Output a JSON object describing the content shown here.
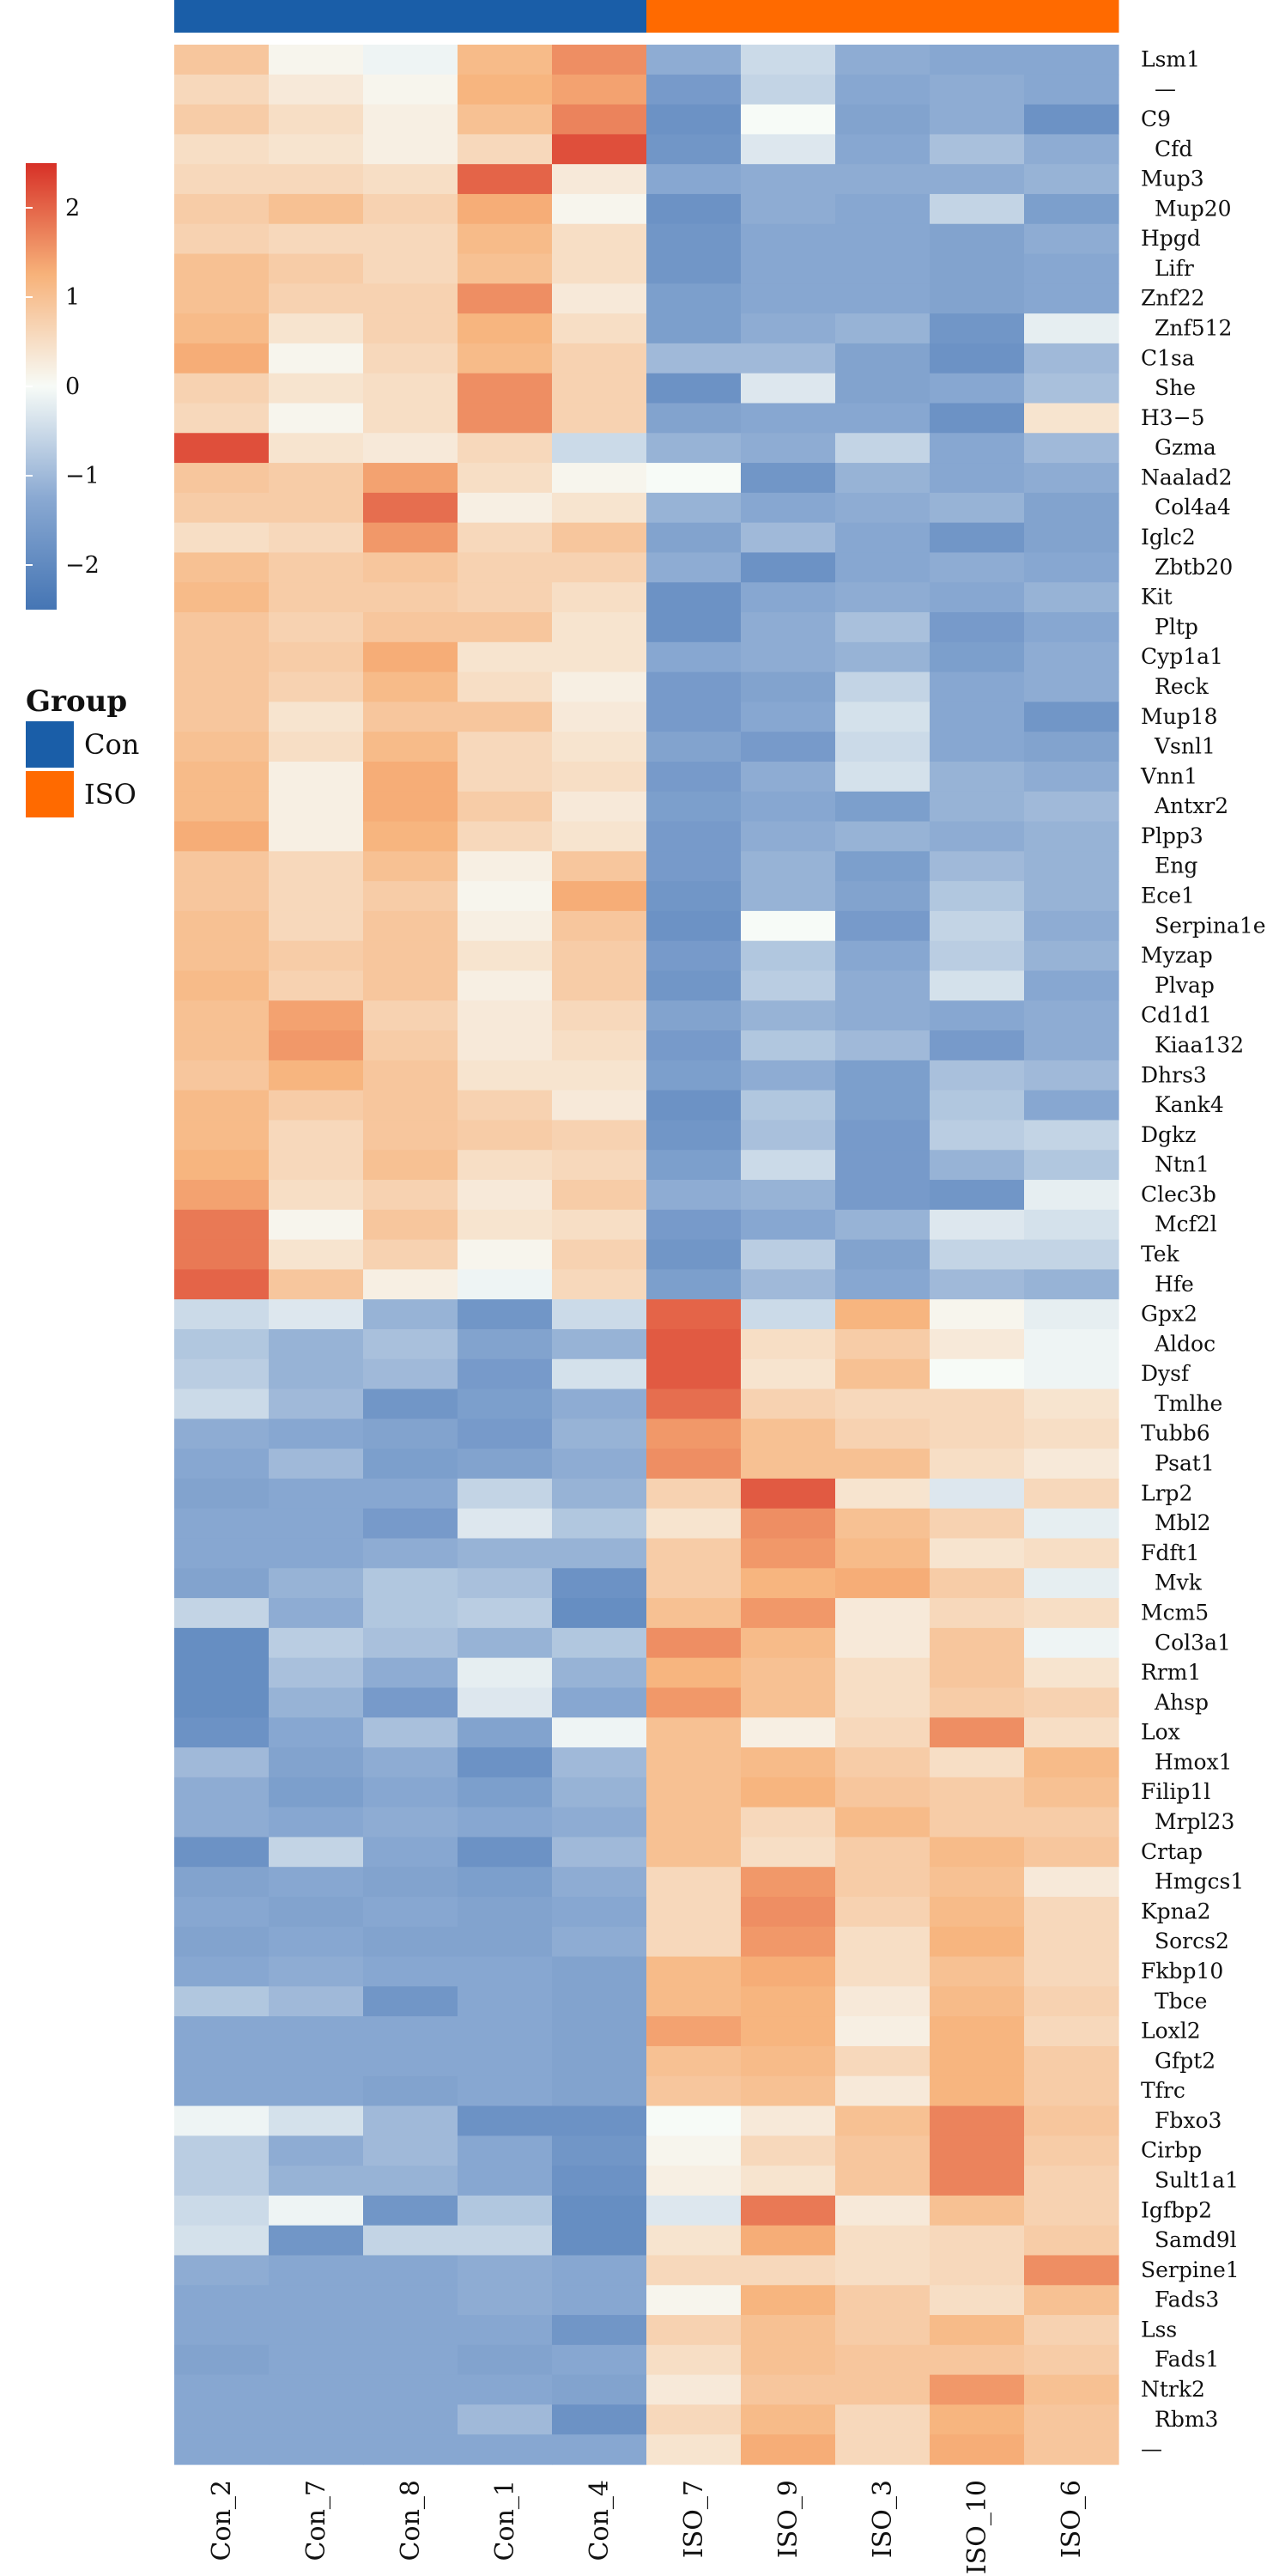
{
  "chart_data": {
    "type": "heatmap",
    "rows": [
      "Lsm1",
      "—",
      "C9",
      "Cfd",
      "Mup3",
      "Mup20",
      "Hpgd",
      "Lifr",
      "Znf22",
      "Znf512",
      "C1sa",
      "She",
      "H3−5",
      "Gzma",
      "Naalad2",
      "Col4a4",
      "Iglc2",
      "Zbtb20",
      "Kit",
      "Pltp",
      "Cyp1a1",
      "Reck",
      "Mup18",
      "Vsnl1",
      "Vnn1",
      "Antxr2",
      "Plpp3",
      "Eng",
      "Ece1",
      "Serpina1e",
      "Myzap",
      "Plvap",
      "Cd1d1",
      "Kiaa132",
      "Dhrs3",
      "Kank4",
      "Dgkz",
      "Ntn1",
      "Clec3b",
      "Mcf2l",
      "Tek",
      "Hfe",
      "Gpx2",
      "Aldoc",
      "Dysf",
      "Tmlhe",
      "Tubb6",
      "Psat1",
      "Lrp2",
      "Mbl2",
      "Fdft1",
      "Mvk",
      "Mcm5",
      "Col3a1",
      "Rrm1",
      "Ahsp",
      "Lox",
      "Hmox1",
      "Filip1l",
      "Mrpl23",
      "Crtap",
      "Hmgcs1",
      "Kpna2",
      "Sorcs2",
      "Fkbp10",
      "Tbce",
      "Loxl2",
      "Gfpt2",
      "Tfrc",
      "Fbxo3",
      "Cirbp",
      "Sult1a1",
      "Igfbp2",
      "Samd9l",
      "Serpine1",
      "Fads3",
      "Lss",
      "Fads1",
      "Ntrk2",
      "Rbm3",
      "—"
    ],
    "columns": [
      "Con_2",
      "Con_7",
      "Con_8",
      "Con_1",
      "Con_4",
      "ISO_7",
      "ISO_9",
      "ISO_3",
      "ISO_10",
      "ISO_6"
    ],
    "column_groups": [
      "Con",
      "Con",
      "Con",
      "Con",
      "Con",
      "ISO",
      "ISO",
      "ISO",
      "ISO",
      "ISO"
    ],
    "values": [
      [
        0.9,
        0.1,
        -0.1,
        1.1,
        1.6,
        -1.2,
        -0.5,
        -1.2,
        -1.3,
        -1.3
      ],
      [
        0.6,
        0.3,
        0.1,
        1.2,
        1.4,
        -1.6,
        -0.6,
        -1.3,
        -1.2,
        -1.3
      ],
      [
        0.8,
        0.5,
        0.2,
        1.0,
        1.7,
        -1.8,
        0.0,
        -1.4,
        -1.2,
        -1.8
      ],
      [
        0.5,
        0.4,
        0.2,
        0.6,
        2.2,
        -1.7,
        -0.3,
        -1.3,
        -0.9,
        -1.2
      ],
      [
        0.6,
        0.6,
        0.5,
        2.0,
        0.3,
        -1.3,
        -1.2,
        -1.2,
        -1.2,
        -1.1
      ],
      [
        0.8,
        1.0,
        0.7,
        1.3,
        0.1,
        -1.8,
        -1.2,
        -1.3,
        -0.6,
        -1.5
      ],
      [
        0.7,
        0.6,
        0.6,
        1.1,
        0.5,
        -1.7,
        -1.3,
        -1.3,
        -1.4,
        -1.2
      ],
      [
        1.0,
        0.8,
        0.6,
        1.0,
        0.5,
        -1.7,
        -1.3,
        -1.3,
        -1.4,
        -1.3
      ],
      [
        1.0,
        0.7,
        0.7,
        1.6,
        0.3,
        -1.5,
        -1.3,
        -1.3,
        -1.4,
        -1.3
      ],
      [
        1.1,
        0.4,
        0.7,
        1.2,
        0.5,
        -1.5,
        -1.2,
        -1.1,
        -1.7,
        -0.2
      ],
      [
        1.3,
        0.1,
        0.6,
        1.1,
        0.7,
        -1.0,
        -1.0,
        -1.4,
        -1.8,
        -1.0
      ],
      [
        0.7,
        0.4,
        0.5,
        1.6,
        0.7,
        -1.8,
        -0.3,
        -1.4,
        -1.3,
        -0.9
      ],
      [
        0.6,
        0.1,
        0.5,
        1.6,
        0.7,
        -1.4,
        -1.3,
        -1.3,
        -1.8,
        0.4
      ],
      [
        2.2,
        0.4,
        0.3,
        0.6,
        -0.5,
        -1.1,
        -1.2,
        -0.6,
        -1.3,
        -1.0
      ],
      [
        0.9,
        0.8,
        1.4,
        0.5,
        0.1,
        0.0,
        -1.7,
        -1.1,
        -1.3,
        -1.2
      ],
      [
        0.8,
        0.8,
        1.9,
        0.2,
        0.4,
        -1.1,
        -1.3,
        -1.2,
        -1.1,
        -1.4
      ],
      [
        0.5,
        0.6,
        1.5,
        0.6,
        0.9,
        -1.4,
        -1.0,
        -1.3,
        -1.7,
        -1.4
      ],
      [
        1.0,
        0.8,
        0.9,
        0.7,
        0.7,
        -1.2,
        -1.8,
        -1.3,
        -1.2,
        -1.3
      ],
      [
        1.1,
        0.8,
        0.8,
        0.7,
        0.5,
        -1.8,
        -1.3,
        -1.2,
        -1.3,
        -1.1
      ],
      [
        0.9,
        0.7,
        0.9,
        0.9,
        0.4,
        -1.8,
        -1.2,
        -0.9,
        -1.6,
        -1.3
      ],
      [
        0.9,
        0.8,
        1.3,
        0.4,
        0.4,
        -1.3,
        -1.2,
        -1.1,
        -1.5,
        -1.2
      ],
      [
        0.9,
        0.7,
        1.1,
        0.5,
        0.2,
        -1.6,
        -1.4,
        -0.6,
        -1.3,
        -1.2
      ],
      [
        0.9,
        0.4,
        0.9,
        0.9,
        0.3,
        -1.6,
        -1.3,
        -0.4,
        -1.3,
        -1.7
      ],
      [
        1.0,
        0.5,
        1.1,
        0.6,
        0.4,
        -1.4,
        -1.6,
        -0.5,
        -1.3,
        -1.4
      ],
      [
        1.1,
        0.2,
        1.3,
        0.6,
        0.5,
        -1.6,
        -1.2,
        -0.4,
        -1.1,
        -1.2
      ],
      [
        1.1,
        0.2,
        1.3,
        0.8,
        0.3,
        -1.5,
        -1.3,
        -1.5,
        -1.1,
        -1.0
      ],
      [
        1.3,
        0.2,
        1.2,
        0.6,
        0.4,
        -1.6,
        -1.2,
        -1.1,
        -1.2,
        -1.1
      ],
      [
        0.9,
        0.6,
        1.0,
        0.2,
        0.9,
        -1.6,
        -1.1,
        -1.5,
        -1.0,
        -1.1
      ],
      [
        0.9,
        0.6,
        0.8,
        0.1,
        1.3,
        -1.7,
        -1.1,
        -1.4,
        -0.8,
        -1.1
      ],
      [
        1.0,
        0.6,
        0.9,
        0.2,
        0.9,
        -1.8,
        0.0,
        -1.6,
        -0.6,
        -1.2
      ],
      [
        1.0,
        0.8,
        0.9,
        0.4,
        0.8,
        -1.6,
        -0.8,
        -1.3,
        -0.7,
        -1.1
      ],
      [
        1.1,
        0.7,
        0.9,
        0.2,
        0.8,
        -1.7,
        -0.7,
        -1.2,
        -0.4,
        -1.3
      ],
      [
        1.0,
        1.4,
        0.7,
        0.3,
        0.6,
        -1.4,
        -1.1,
        -1.2,
        -1.3,
        -1.2
      ],
      [
        1.0,
        1.5,
        0.8,
        0.3,
        0.5,
        -1.6,
        -0.8,
        -1.0,
        -1.6,
        -1.2
      ],
      [
        0.9,
        1.2,
        0.9,
        0.4,
        0.4,
        -1.5,
        -1.2,
        -1.5,
        -0.9,
        -1.0
      ],
      [
        1.1,
        0.8,
        0.9,
        0.7,
        0.3,
        -1.8,
        -0.8,
        -1.5,
        -0.8,
        -1.3
      ],
      [
        1.1,
        0.6,
        0.9,
        0.8,
        0.7,
        -1.7,
        -0.9,
        -1.6,
        -0.7,
        -0.6
      ],
      [
        1.2,
        0.6,
        1.0,
        0.5,
        0.6,
        -1.5,
        -0.5,
        -1.6,
        -1.1,
        -0.8
      ],
      [
        1.4,
        0.5,
        0.7,
        0.3,
        0.8,
        -1.2,
        -1.1,
        -1.6,
        -1.7,
        -0.2
      ],
      [
        1.8,
        0.1,
        0.9,
        0.4,
        0.5,
        -1.6,
        -1.3,
        -1.1,
        -0.3,
        -0.4
      ],
      [
        1.8,
        0.4,
        0.7,
        0.1,
        0.7,
        -1.7,
        -0.7,
        -1.4,
        -0.6,
        -0.6
      ],
      [
        2.0,
        0.9,
        0.2,
        -0.1,
        0.6,
        -1.5,
        -1.0,
        -1.3,
        -1.0,
        -1.1
      ],
      [
        -0.5,
        -0.3,
        -1.1,
        -1.7,
        -0.5,
        2.0,
        -0.5,
        1.2,
        0.1,
        -0.2
      ],
      [
        -0.8,
        -1.1,
        -0.9,
        -1.4,
        -1.1,
        2.1,
        0.5,
        0.8,
        0.3,
        -0.1
      ],
      [
        -0.7,
        -1.1,
        -1.0,
        -1.6,
        -0.4,
        2.1,
        0.4,
        1.0,
        0.0,
        -0.1
      ],
      [
        -0.5,
        -1.0,
        -1.7,
        -1.5,
        -1.2,
        1.9,
        0.7,
        0.6,
        0.6,
        0.4
      ],
      [
        -1.2,
        -1.3,
        -1.4,
        -1.6,
        -1.1,
        1.5,
        1.0,
        0.7,
        0.6,
        0.5
      ],
      [
        -1.3,
        -1.0,
        -1.5,
        -1.4,
        -1.2,
        1.6,
        1.0,
        1.0,
        0.5,
        0.3
      ],
      [
        -1.4,
        -1.3,
        -1.3,
        -0.6,
        -1.1,
        0.7,
        2.1,
        0.4,
        -0.3,
        0.6
      ],
      [
        -1.3,
        -1.3,
        -1.6,
        -0.3,
        -0.8,
        0.4,
        1.6,
        1.0,
        0.7,
        -0.2
      ],
      [
        -1.3,
        -1.3,
        -1.2,
        -1.1,
        -1.1,
        0.8,
        1.5,
        1.1,
        0.4,
        0.5
      ],
      [
        -1.4,
        -1.1,
        -0.8,
        -0.9,
        -1.8,
        0.8,
        1.2,
        1.3,
        0.8,
        -0.2
      ],
      [
        -0.6,
        -1.2,
        -0.8,
        -0.7,
        -1.9,
        1.0,
        1.5,
        0.3,
        0.6,
        0.5
      ],
      [
        -1.9,
        -0.7,
        -0.9,
        -1.1,
        -0.8,
        1.6,
        1.1,
        0.3,
        0.9,
        -0.1
      ],
      [
        -1.9,
        -0.9,
        -1.2,
        -0.2,
        -1.1,
        1.2,
        1.0,
        0.5,
        0.9,
        0.4
      ],
      [
        -1.9,
        -1.1,
        -1.6,
        -0.3,
        -1.3,
        1.5,
        1.0,
        0.5,
        0.8,
        0.7
      ],
      [
        -1.8,
        -1.3,
        -0.9,
        -1.4,
        -0.1,
        1.0,
        0.2,
        0.6,
        1.6,
        0.5
      ],
      [
        -1.0,
        -1.4,
        -1.2,
        -1.8,
        -1.0,
        1.0,
        1.1,
        0.8,
        0.5,
        1.1
      ],
      [
        -1.2,
        -1.5,
        -1.3,
        -1.5,
        -1.1,
        1.0,
        1.2,
        0.9,
        0.8,
        1.0
      ],
      [
        -1.2,
        -1.3,
        -1.2,
        -1.3,
        -1.2,
        1.0,
        0.6,
        1.1,
        0.8,
        0.8
      ],
      [
        -1.8,
        -0.6,
        -1.3,
        -1.8,
        -1.0,
        1.0,
        0.5,
        0.8,
        1.1,
        0.9
      ],
      [
        -1.4,
        -1.3,
        -1.4,
        -1.5,
        -1.2,
        0.6,
        1.5,
        0.8,
        1.0,
        0.3
      ],
      [
        -1.3,
        -1.4,
        -1.3,
        -1.4,
        -1.3,
        0.6,
        1.6,
        0.7,
        1.1,
        0.6
      ],
      [
        -1.4,
        -1.3,
        -1.4,
        -1.4,
        -1.2,
        0.6,
        1.5,
        0.5,
        1.2,
        0.6
      ],
      [
        -1.3,
        -1.2,
        -1.3,
        -1.3,
        -1.4,
        1.1,
        1.3,
        0.5,
        1.0,
        0.6
      ],
      [
        -0.8,
        -1.0,
        -1.7,
        -1.3,
        -1.4,
        1.1,
        1.2,
        0.3,
        1.1,
        0.7
      ],
      [
        -1.3,
        -1.3,
        -1.3,
        -1.3,
        -1.4,
        1.4,
        1.2,
        0.2,
        1.2,
        0.6
      ],
      [
        -1.3,
        -1.3,
        -1.3,
        -1.3,
        -1.4,
        1.0,
        1.1,
        0.6,
        1.2,
        0.8
      ],
      [
        -1.3,
        -1.3,
        -1.4,
        -1.3,
        -1.4,
        0.9,
        1.0,
        0.3,
        1.2,
        0.8
      ],
      [
        -0.1,
        -0.4,
        -1.0,
        -1.8,
        -1.8,
        0.0,
        0.3,
        1.0,
        1.7,
        0.9
      ],
      [
        -0.7,
        -1.2,
        -1.0,
        -1.3,
        -1.7,
        0.1,
        0.6,
        0.9,
        1.7,
        0.8
      ],
      [
        -0.7,
        -1.1,
        -1.1,
        -1.3,
        -1.8,
        0.2,
        0.4,
        0.9,
        1.7,
        0.7
      ],
      [
        -0.5,
        -0.1,
        -1.7,
        -0.8,
        -1.9,
        -0.3,
        1.8,
        0.3,
        1.0,
        0.7
      ],
      [
        -0.4,
        -1.7,
        -0.6,
        -0.6,
        -1.9,
        0.4,
        1.3,
        0.5,
        0.6,
        0.8
      ],
      [
        -1.2,
        -1.3,
        -1.3,
        -1.2,
        -1.3,
        0.6,
        0.6,
        0.5,
        0.6,
        1.6
      ],
      [
        -1.3,
        -1.3,
        -1.3,
        -1.2,
        -1.3,
        0.1,
        1.2,
        0.8,
        0.5,
        1.0
      ],
      [
        -1.3,
        -1.3,
        -1.3,
        -1.3,
        -1.7,
        0.7,
        1.0,
        0.8,
        1.1,
        0.7
      ],
      [
        -1.4,
        -1.3,
        -1.3,
        -1.4,
        -1.3,
        0.5,
        1.0,
        0.9,
        0.9,
        0.8
      ],
      [
        -1.3,
        -1.3,
        -1.3,
        -1.3,
        -1.4,
        0.3,
        0.9,
        0.9,
        1.5,
        1.0
      ],
      [
        -1.3,
        -1.3,
        -1.3,
        -1.0,
        -1.8,
        0.6,
        1.1,
        0.6,
        1.2,
        0.9
      ],
      [
        -1.3,
        -1.3,
        -1.3,
        -1.3,
        -1.3,
        0.4,
        1.3,
        0.6,
        1.3,
        0.9
      ]
    ],
    "color_scale": {
      "min": -2.5,
      "max": 2.5,
      "low_color": "#4575b4",
      "mid_color": "#f7fbf7",
      "high_color": "#d73027",
      "ticks": [
        "2",
        "1",
        "0",
        "−1",
        "−2"
      ],
      "tick_values": [
        2,
        1,
        0,
        -1,
        -2
      ]
    },
    "legend": {
      "title": "Group",
      "items": [
        {
          "label": "Con",
          "color": "#1a5ea8"
        },
        {
          "label": "ISO",
          "color": "#ff6a00"
        }
      ]
    },
    "title": "",
    "xlabel": "",
    "ylabel": ""
  }
}
